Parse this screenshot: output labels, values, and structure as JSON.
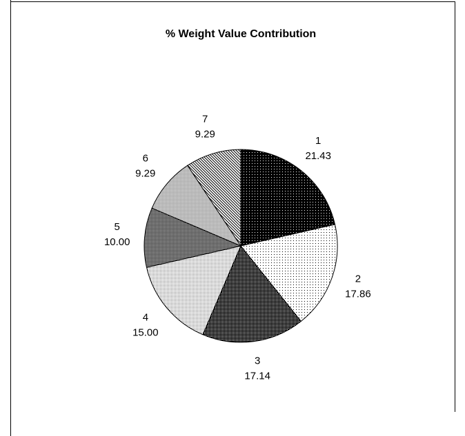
{
  "chart_data": {
    "type": "pie",
    "title": "% Weight Value Contribution",
    "categories": [
      "1",
      "2",
      "3",
      "4",
      "5",
      "6",
      "7"
    ],
    "values": [
      21.43,
      17.86,
      17.14,
      15,
      10,
      9.29,
      9.29
    ],
    "value_labels": [
      "21.43",
      "17.86",
      "17.14",
      "15.00",
      "10.00",
      "9.29",
      "9.29"
    ]
  }
}
